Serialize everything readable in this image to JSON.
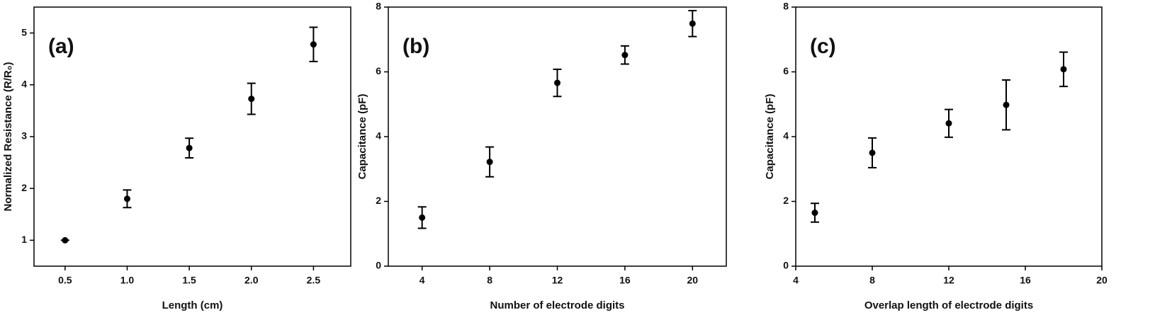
{
  "chart_data": [
    {
      "type": "scatter",
      "annotation": "(a)",
      "xlabel": "Length (cm)",
      "ylabel": "Normalized Resistance (R/R₀)",
      "xlim": [
        0.25,
        2.8
      ],
      "ylim": [
        0.5,
        5.5
      ],
      "xticks": [
        0.5,
        {
          "value": 1,
          "label": "1.0"
        },
        1.5,
        {
          "value": 2,
          "label": "2.0"
        },
        2.5
      ],
      "yticks": [
        1,
        2,
        3,
        4,
        5
      ],
      "series": [
        {
          "color": "#000000",
          "x": [
            0.5,
            1.0,
            1.5,
            2.0,
            2.5
          ],
          "values": [
            1.0,
            1.8,
            2.78,
            3.73,
            4.78
          ],
          "errors": [
            0,
            0.17,
            0.19,
            0.3,
            0.33
          ]
        }
      ]
    },
    {
      "type": "scatter",
      "annotation": "(b)",
      "xlabel": "Number of electrode digits",
      "ylabel": "Capacitance (pF)",
      "xlim": [
        2,
        22
      ],
      "ylim": [
        0,
        8
      ],
      "xticks": [
        4,
        8,
        12,
        16,
        20
      ],
      "yticks": [
        0,
        2,
        4,
        6,
        8
      ],
      "series": [
        {
          "color": "#000000",
          "x": [
            4,
            8,
            12,
            16,
            20
          ],
          "values": [
            1.5,
            3.22,
            5.66,
            6.52,
            7.49
          ],
          "errors": [
            0.33,
            0.46,
            0.42,
            0.28,
            0.4
          ]
        }
      ]
    },
    {
      "type": "scatter",
      "annotation": "(c)",
      "xlabel": "Overlap length of electrode digits",
      "ylabel": "Capacitance (pF)",
      "xlim": [
        4,
        20
      ],
      "ylim": [
        0,
        8
      ],
      "xticks": [
        4,
        8,
        12,
        16,
        20
      ],
      "yticks": [
        0,
        2,
        4,
        6,
        8
      ],
      "series": [
        {
          "color": "#000000",
          "x": [
            5,
            8,
            12,
            15,
            18
          ],
          "values": [
            1.65,
            3.5,
            4.41,
            4.98,
            6.08
          ],
          "errors": [
            0.29,
            0.46,
            0.43,
            0.77,
            0.53
          ]
        }
      ]
    }
  ]
}
